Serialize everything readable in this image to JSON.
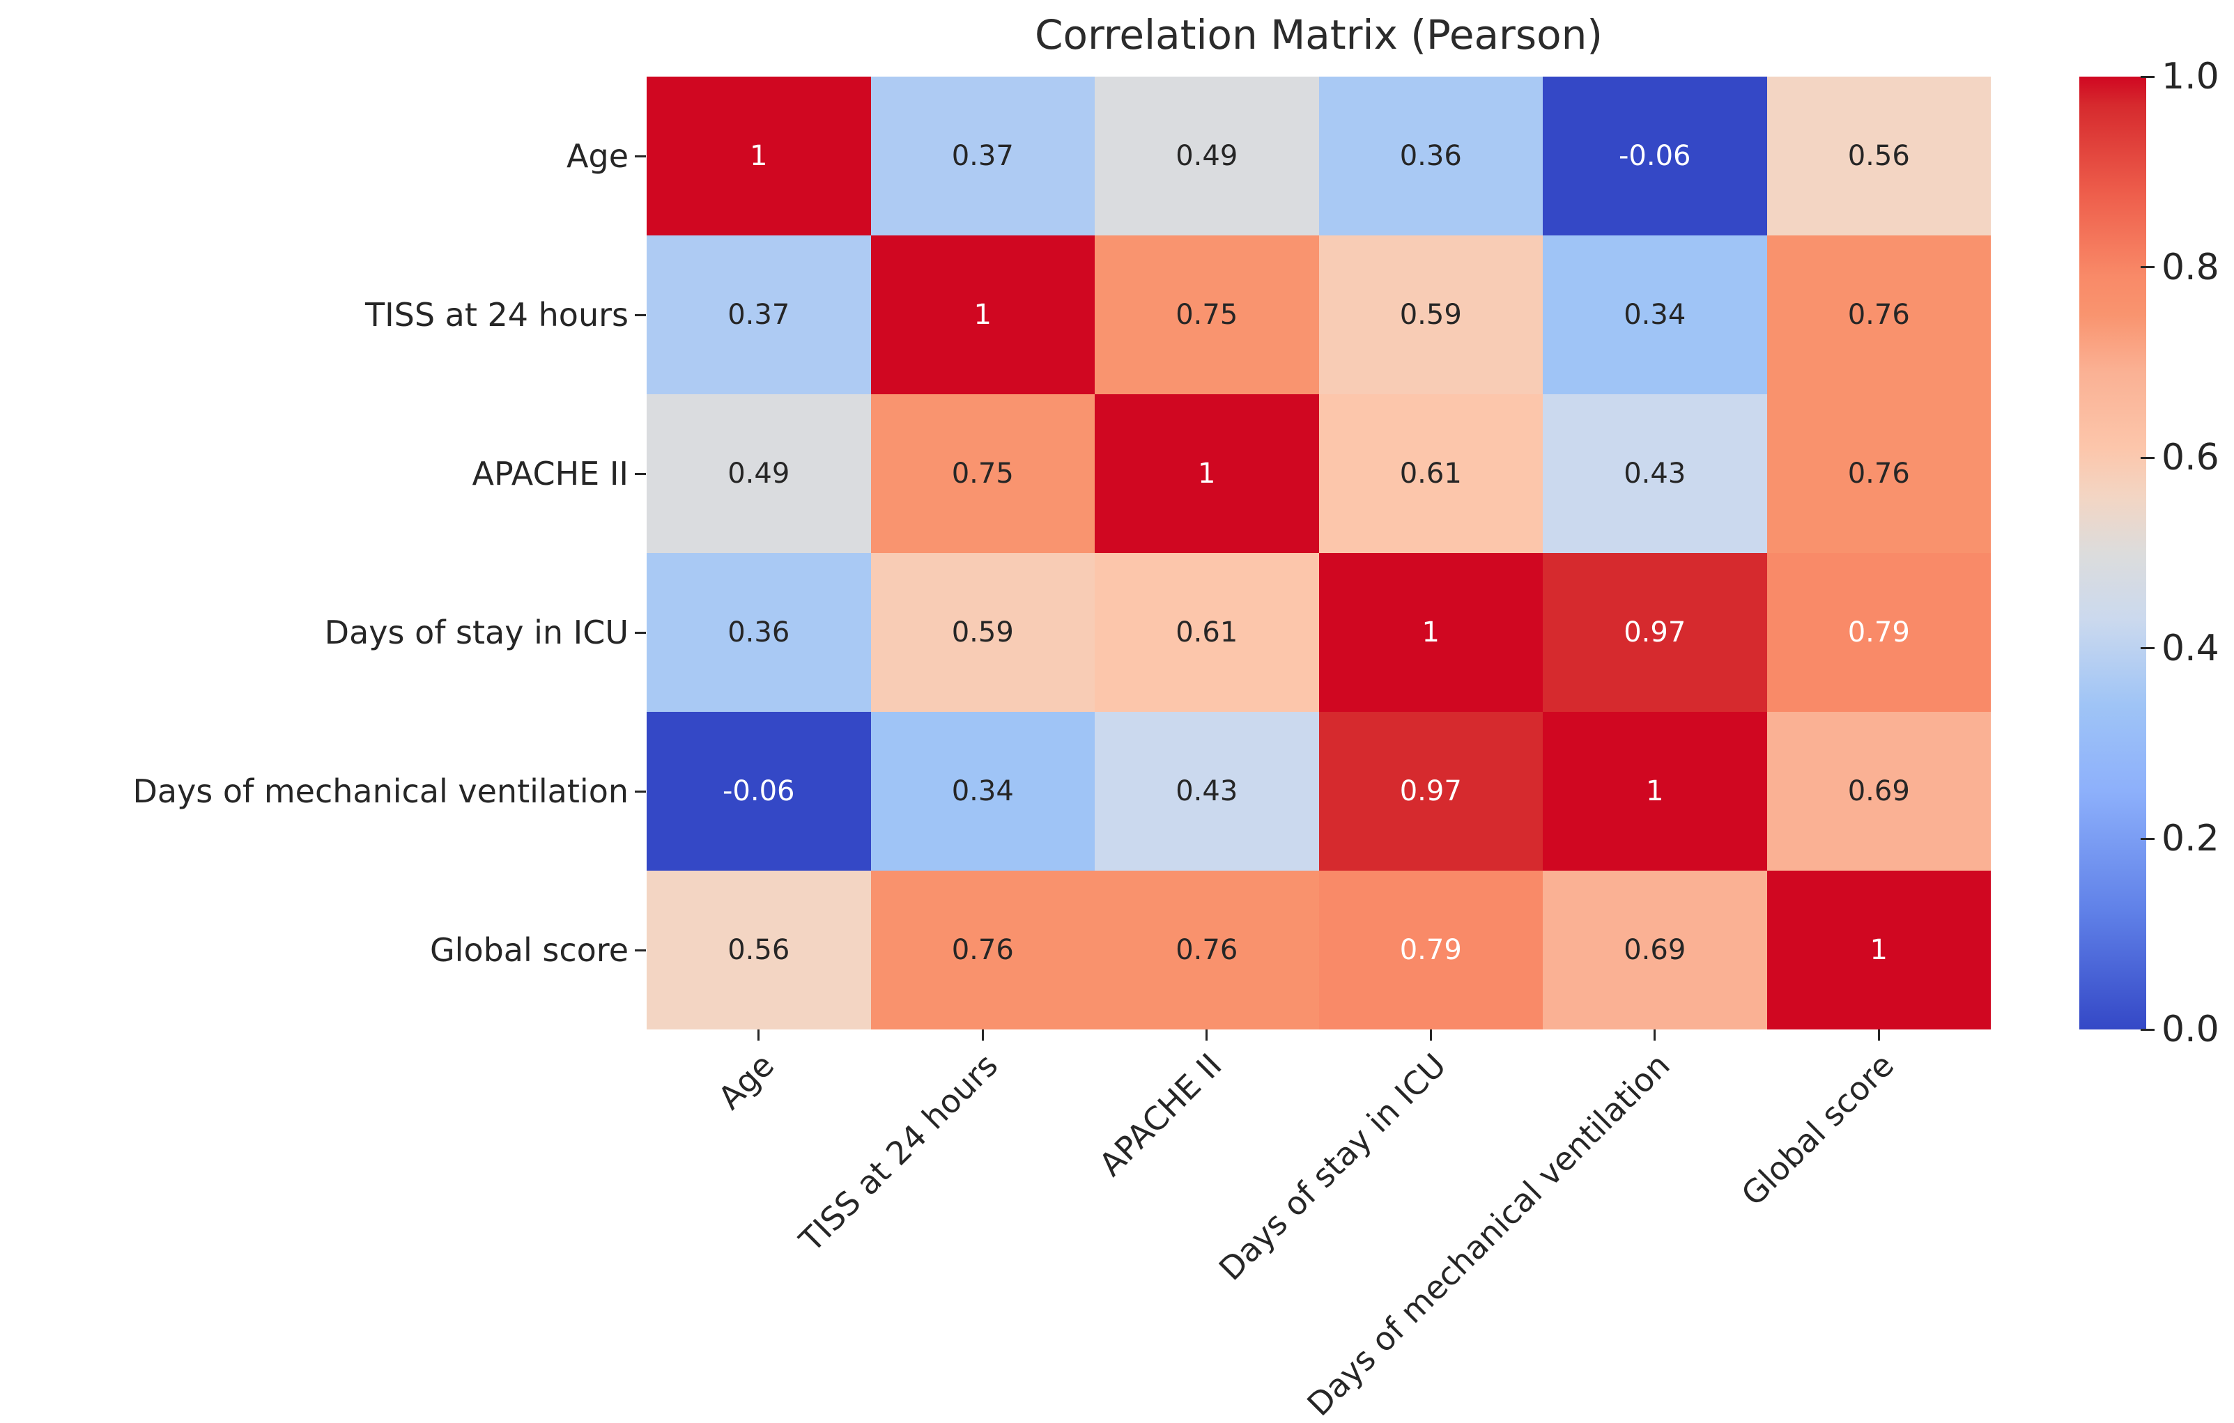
{
  "chart_data": {
    "type": "heatmap",
    "title": "Correlation Matrix (Pearson)",
    "variables": [
      "Age",
      "TISS at 24 hours",
      "APACHE II",
      "Days of stay in ICU",
      "Days of mechanical ventilation",
      "Global score"
    ],
    "matrix": [
      [
        1,
        0.37,
        0.49,
        0.36,
        -0.06,
        0.56
      ],
      [
        0.37,
        1,
        0.75,
        0.59,
        0.34,
        0.76
      ],
      [
        0.49,
        0.75,
        1,
        0.61,
        0.43,
        0.76
      ],
      [
        0.36,
        0.59,
        0.61,
        1,
        0.97,
        0.79
      ],
      [
        -0.06,
        0.34,
        0.43,
        0.97,
        1,
        0.69
      ],
      [
        0.56,
        0.76,
        0.76,
        0.79,
        0.69,
        1
      ]
    ],
    "vmin": 0,
    "vmax": 1,
    "grid": false,
    "legend_position": "right-colorbar",
    "colorbar_ticks": [
      {
        "value": 0.0,
        "label": "0.0"
      },
      {
        "value": 0.2,
        "label": "0.2"
      },
      {
        "value": 0.4,
        "label": "0.4"
      },
      {
        "value": 0.6,
        "label": "0.6"
      },
      {
        "value": 0.8,
        "label": "0.8"
      },
      {
        "value": 1.0,
        "label": "1.0"
      }
    ],
    "colormap_stops": [
      {
        "t": 0.0,
        "color": "#3448c6"
      },
      {
        "t": 0.125,
        "color": "#6081e8"
      },
      {
        "t": 0.25,
        "color": "#8db0fb"
      },
      {
        "t": 0.34,
        "color": "#9fc4f6"
      },
      {
        "t": 0.43,
        "color": "#cbd9ee"
      },
      {
        "t": 0.5,
        "color": "#dcdcdc"
      },
      {
        "t": 0.56,
        "color": "#f3d5c3"
      },
      {
        "t": 0.61,
        "color": "#fcc6ab"
      },
      {
        "t": 0.69,
        "color": "#fab194"
      },
      {
        "t": 0.75,
        "color": "#f9946f"
      },
      {
        "t": 0.79,
        "color": "#f98a68"
      },
      {
        "t": 0.875,
        "color": "#ee5f4c"
      },
      {
        "t": 0.97,
        "color": "#d62a2e"
      },
      {
        "t": 1.0,
        "color": "#d00721"
      }
    ],
    "annotation_text_colors": {
      "light": "#ffffff",
      "dark": "#262626",
      "luminance_threshold": 0.408
    }
  }
}
